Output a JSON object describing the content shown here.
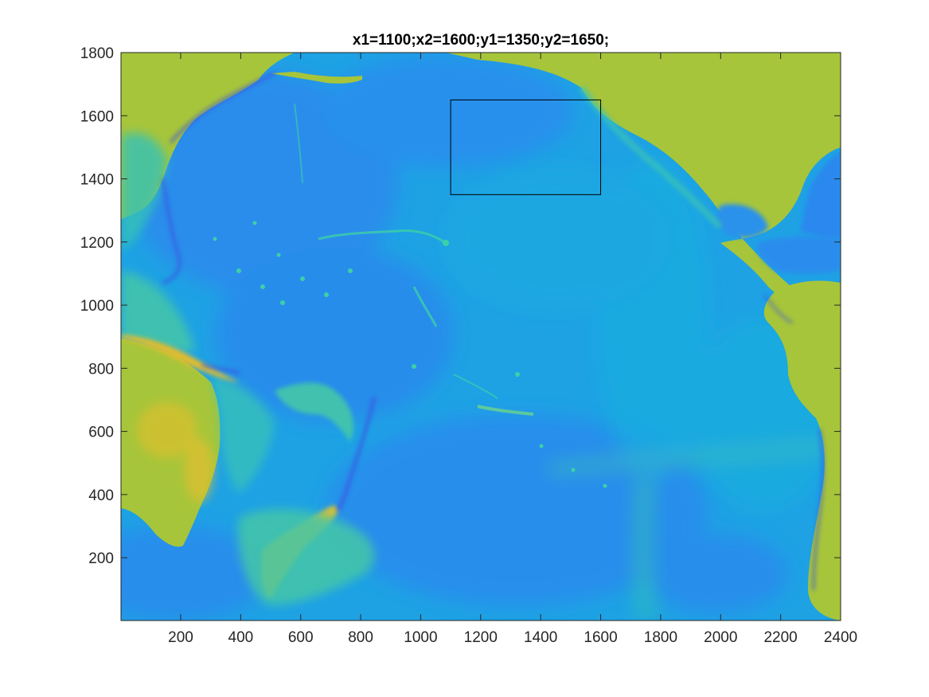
{
  "chart_data": {
    "type": "heatmap",
    "title": "x1=1100;x2=1600;y1=1350;y2=1650;",
    "xlabel": "",
    "ylabel": "",
    "xlim": [
      1,
      2400
    ],
    "ylim": [
      1,
      1800
    ],
    "x_ticks": [
      200,
      400,
      600,
      800,
      1000,
      1200,
      1400,
      1600,
      1800,
      2000,
      2200,
      2400
    ],
    "y_ticks": [
      200,
      400,
      600,
      800,
      1000,
      1200,
      1400,
      1600,
      1800
    ],
    "grid": false,
    "colormap": "parula",
    "colors": {
      "land": "#a7c53a",
      "deep_ocean": "#2d86ee",
      "mid_ocean": "#1da7e2",
      "trench": "#3b4fe0",
      "shallow": "#35c9b0",
      "highland": "#f2bf2c"
    },
    "annotations": [
      {
        "type": "rectangle",
        "x1": 1100,
        "x2": 1600,
        "y1": 1350,
        "y2": 1650,
        "color": "#000000"
      }
    ]
  }
}
